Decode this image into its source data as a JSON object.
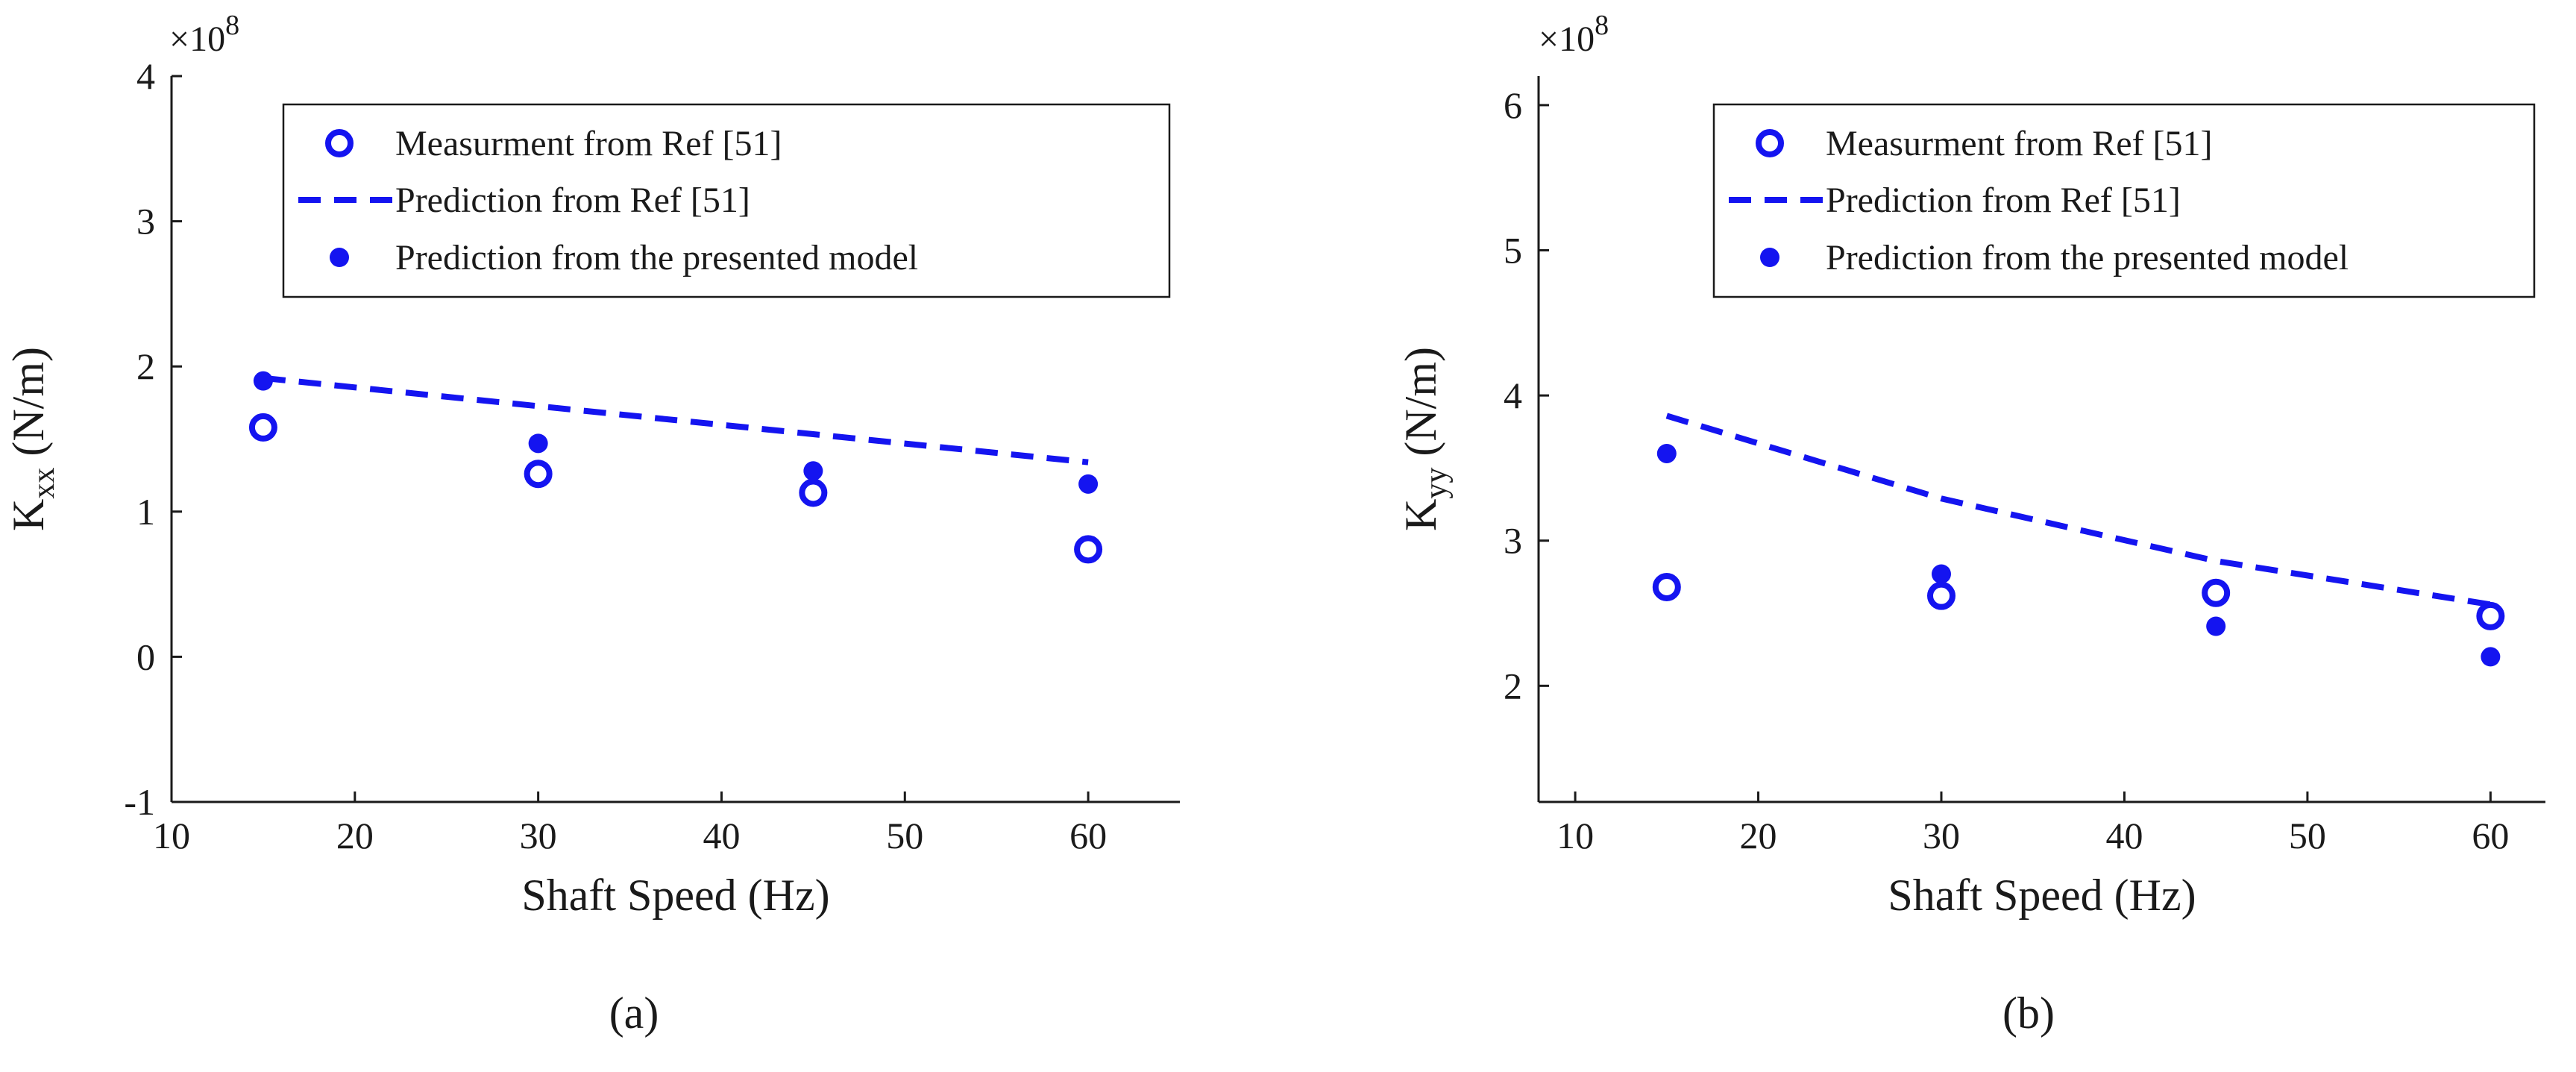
{
  "figure": {
    "panel_labels": [
      "(a)",
      "(b)"
    ]
  },
  "colors": {
    "series": "#1414f0",
    "axis": "#1a1a1a"
  },
  "chart_data": [
    {
      "id": "a",
      "type": "scatter",
      "panel_label": "(a)",
      "xlabel": "Shaft Speed (Hz)",
      "ylabel_main": "K",
      "ylabel_sub": "xx",
      "ylabel_unit": " (N/m)",
      "multiplier_base": "×10",
      "multiplier_exp": "8",
      "xlim": [
        10,
        65
      ],
      "ylim": [
        -1,
        4
      ],
      "xticks": [
        10,
        20,
        30,
        40,
        50,
        60
      ],
      "yticks": [
        -1,
        0,
        1,
        2,
        3,
        4
      ],
      "legend": {
        "position": "top-right",
        "entries": [
          "Measurment from Ref [51]",
          "Prediction from Ref [51]",
          "Prediction from the presented model"
        ]
      },
      "series": [
        {
          "name": "Measurment from Ref [51]",
          "style": "open-circle",
          "x": [
            15,
            30,
            45,
            60
          ],
          "y": [
            1.58,
            1.26,
            1.13,
            0.74
          ]
        },
        {
          "name": "Prediction from Ref [51]",
          "style": "dashed-line",
          "x": [
            15,
            60
          ],
          "y": [
            1.92,
            1.34
          ]
        },
        {
          "name": "Prediction from the presented model",
          "style": "filled-dot",
          "x": [
            15,
            30,
            45,
            60
          ],
          "y": [
            1.9,
            1.47,
            1.28,
            1.19
          ]
        }
      ]
    },
    {
      "id": "b",
      "type": "scatter",
      "panel_label": "(b)",
      "xlabel": "Shaft Speed (Hz)",
      "ylabel_main": "K",
      "ylabel_sub": "yy",
      "ylabel_unit": " (N/m)",
      "multiplier_base": "×10",
      "multiplier_exp": "8",
      "xlim": [
        8,
        63
      ],
      "ylim": [
        1.2,
        6.2
      ],
      "xticks": [
        10,
        20,
        30,
        40,
        50,
        60
      ],
      "yticks": [
        2,
        3,
        4,
        5,
        6
      ],
      "legend": {
        "position": "top-right",
        "entries": [
          "Measurment from Ref [51]",
          "Prediction from Ref [51]",
          "Prediction from the presented model"
        ]
      },
      "series": [
        {
          "name": "Measurment from Ref [51]",
          "style": "open-circle",
          "x": [
            15,
            30,
            45,
            60
          ],
          "y": [
            2.68,
            2.62,
            2.64,
            2.48
          ]
        },
        {
          "name": "Prediction from Ref [51]",
          "style": "dashed-line",
          "x": [
            15,
            20,
            30,
            45,
            60
          ],
          "y": [
            3.86,
            3.67,
            3.29,
            2.86,
            2.56
          ]
        },
        {
          "name": "Prediction from the presented model",
          "style": "filled-dot",
          "x": [
            15,
            30,
            45,
            60
          ],
          "y": [
            3.6,
            2.77,
            2.41,
            2.2
          ]
        }
      ]
    }
  ]
}
